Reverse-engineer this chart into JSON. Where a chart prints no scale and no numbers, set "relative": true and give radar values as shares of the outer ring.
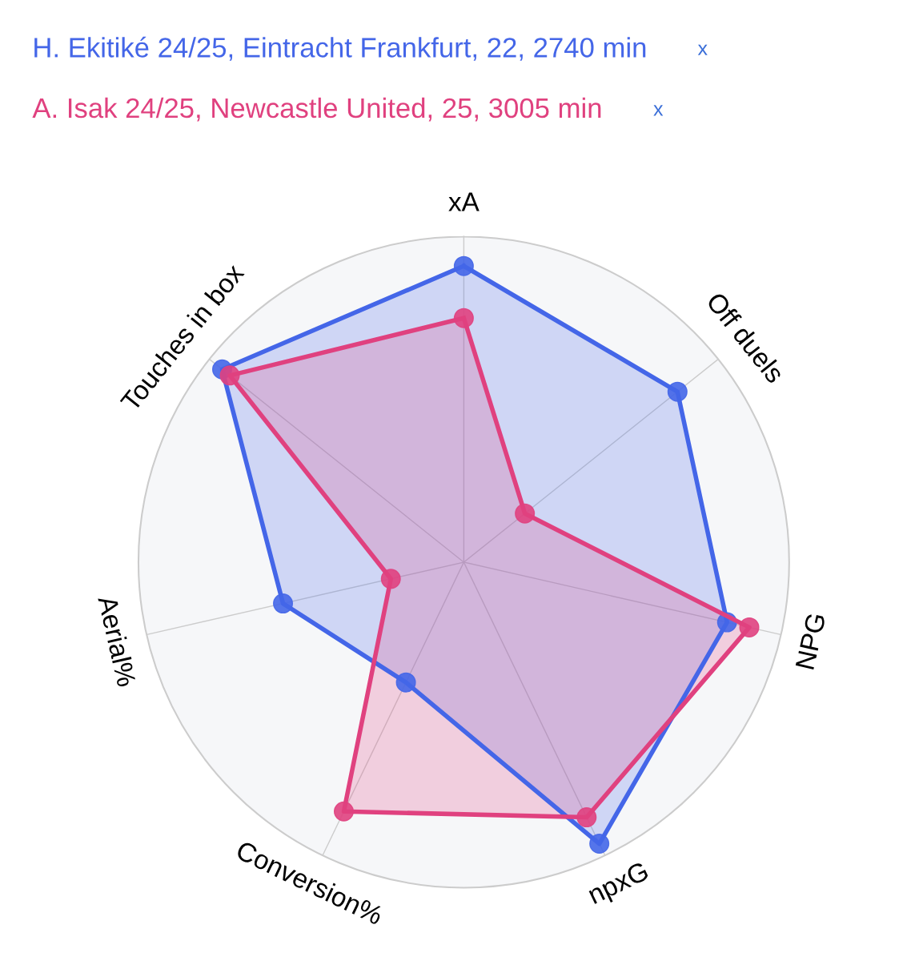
{
  "chart_data": {
    "type": "radar",
    "relative": true,
    "categories": [
      "xA",
      "Off duels",
      "NPG",
      "npxG",
      "Conversion%",
      "Aerial%",
      "Touches in box"
    ],
    "series": [
      {
        "name": "H. Ekitiké 24/25, Eintracht Frankfurt, 22, 2740 min",
        "color": "#4466e8",
        "values": [
          0.91,
          0.84,
          0.83,
          0.96,
          0.41,
          0.57,
          0.95
        ]
      },
      {
        "name": "A. Isak 24/25, Newcastle United, 25, 3005 min",
        "color": "#e0417f",
        "values": [
          0.75,
          0.24,
          0.9,
          0.87,
          0.85,
          0.23,
          0.92
        ]
      }
    ],
    "annotations": [
      "x",
      "x"
    ],
    "marker": "circle",
    "legend": "top left",
    "grid": true
  }
}
